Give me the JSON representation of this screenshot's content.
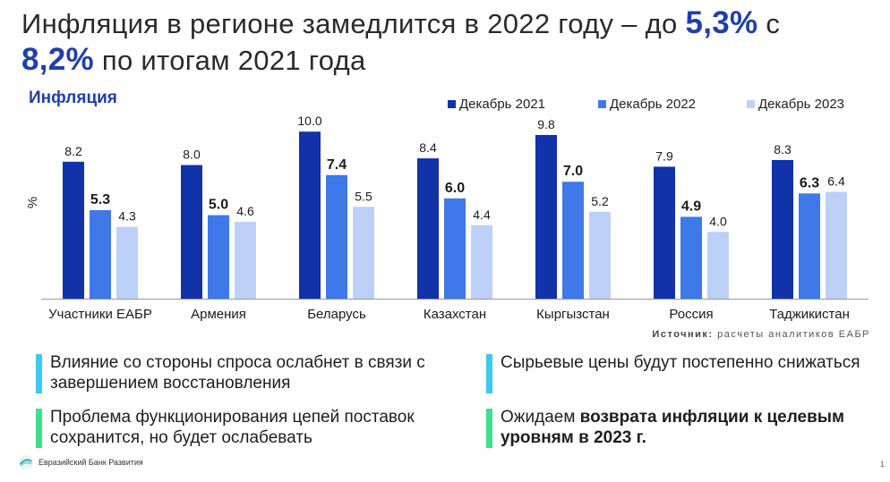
{
  "title": {
    "part1": "Инфляция в регионе замедлится в 2022 году – до ",
    "hl1": "5,3%",
    "part2": " с ",
    "hl2": "8,2%",
    "part3": " по итогам 2021 года"
  },
  "chart_label": "Инфляция",
  "colors": {
    "dec2021": "#1132a8",
    "dec2022": "#3f78e8",
    "dec2023": "#bdd0f7",
    "bar_blue": "#3fc8f0",
    "bar_green": "#3ee08c",
    "accent": "#1f3faa"
  },
  "chart_data": {
    "type": "bar",
    "title": "Инфляция",
    "ylabel": "%",
    "xlabel": "",
    "ylim": [
      0,
      10.6
    ],
    "grid": false,
    "legend_position": "top-right",
    "categories": [
      "Участники ЕАБР",
      "Армения",
      "Беларусь",
      "Казахстан",
      "Кыргызстан",
      "Россия",
      "Таджикистан"
    ],
    "series": [
      {
        "name": "Декабрь 2021",
        "values": [
          8.2,
          8.0,
          10.0,
          8.4,
          9.8,
          7.9,
          8.3
        ],
        "labels": [
          "8.2",
          "8.0",
          "10.0",
          "8.4",
          "9.8",
          "7.9",
          "8.3"
        ],
        "bold": false
      },
      {
        "name": "Декабрь 2022",
        "values": [
          5.3,
          5.0,
          7.4,
          6.0,
          7.0,
          4.9,
          6.3
        ],
        "labels": [
          "5.3",
          "5.0",
          "7.4",
          "6.0",
          "7.0",
          "4.9",
          "6.3"
        ],
        "bold": true
      },
      {
        "name": "Декабрь 2023",
        "values": [
          4.3,
          4.6,
          5.5,
          4.4,
          5.2,
          4.0,
          6.4
        ],
        "labels": [
          "4.3",
          "4.6",
          "5.5",
          "4.4",
          "5.2",
          "4.0",
          "6.4"
        ],
        "bold": false
      }
    ]
  },
  "source": {
    "label": "Источник:",
    "text": " расчеты аналитиков ЕАБР"
  },
  "notes": [
    {
      "text": "Влияние со стороны спроса ослабнет в связи с завершением восстановления"
    },
    {
      "text": "Сырьевые цены будут постепенно снижаться"
    },
    {
      "text": "Проблема функционирования цепей поставок сохранится, но будет ослабевать"
    },
    {
      "text_plain": "Ожидаем ",
      "text_bold": "возврата инфляции к целевым уровням в 2023 г."
    }
  ],
  "footer": {
    "bank_name": "Евразийский Банк Развития",
    "page": "1"
  }
}
